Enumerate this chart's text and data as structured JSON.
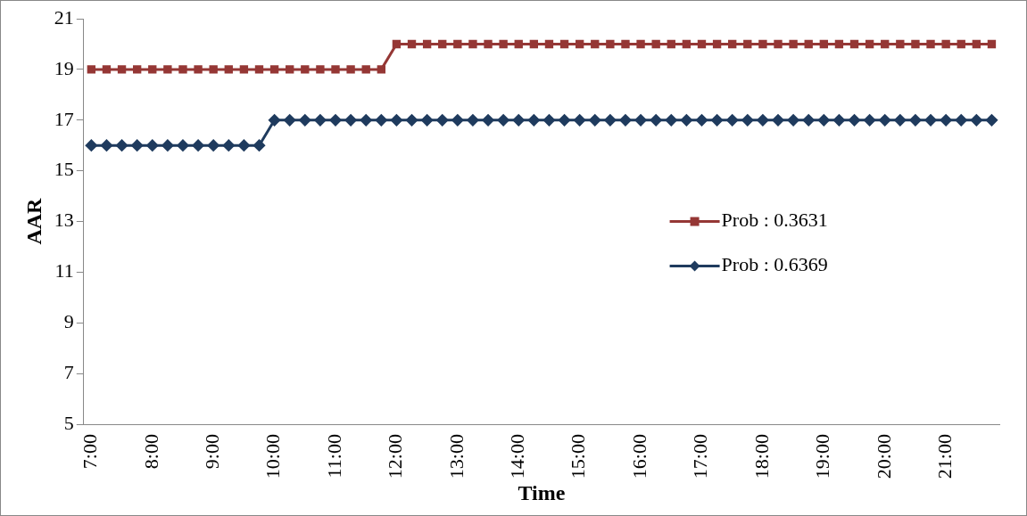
{
  "chart_data": {
    "type": "line",
    "xlabel": "Time",
    "ylabel": "AAR",
    "categories": [
      "7:00",
      null,
      null,
      null,
      "8:00",
      null,
      null,
      null,
      "9:00",
      null,
      null,
      null,
      "10:00",
      null,
      null,
      null,
      "11:00",
      null,
      null,
      null,
      "12:00",
      null,
      null,
      null,
      "13:00",
      null,
      null,
      null,
      "14:00",
      null,
      null,
      null,
      "15:00",
      null,
      null,
      null,
      "16:00",
      null,
      null,
      null,
      "17:00",
      null,
      null,
      null,
      "18:00",
      null,
      null,
      null,
      "19:00",
      null,
      null,
      null,
      "20:00",
      null,
      null,
      null,
      "21:00",
      null,
      null,
      null
    ],
    "series": [
      {
        "name": "Prob : 0.3631",
        "color": "#953735",
        "marker": "square",
        "values": [
          19,
          19,
          19,
          19,
          19,
          19,
          19,
          19,
          19,
          19,
          19,
          19,
          19,
          19,
          19,
          19,
          19,
          19,
          19,
          19,
          20,
          20,
          20,
          20,
          20,
          20,
          20,
          20,
          20,
          20,
          20,
          20,
          20,
          20,
          20,
          20,
          20,
          20,
          20,
          20,
          20,
          20,
          20,
          20,
          20,
          20,
          20,
          20,
          20,
          20,
          20,
          20,
          20,
          20,
          20,
          20,
          20,
          20,
          20,
          20
        ]
      },
      {
        "name": "Prob : 0.6369",
        "color": "#1f3b5e",
        "marker": "diamond",
        "values": [
          16,
          16,
          16,
          16,
          16,
          16,
          16,
          16,
          16,
          16,
          16,
          16,
          17,
          17,
          17,
          17,
          17,
          17,
          17,
          17,
          17,
          17,
          17,
          17,
          17,
          17,
          17,
          17,
          17,
          17,
          17,
          17,
          17,
          17,
          17,
          17,
          17,
          17,
          17,
          17,
          17,
          17,
          17,
          17,
          17,
          17,
          17,
          17,
          17,
          17,
          17,
          17,
          17,
          17,
          17,
          17,
          17,
          17,
          17,
          17
        ]
      }
    ],
    "ylim": [
      5,
      21
    ],
    "yticks": [
      5,
      7,
      9,
      11,
      13,
      15,
      17,
      19,
      21
    ],
    "grid": false,
    "legend": "right"
  }
}
